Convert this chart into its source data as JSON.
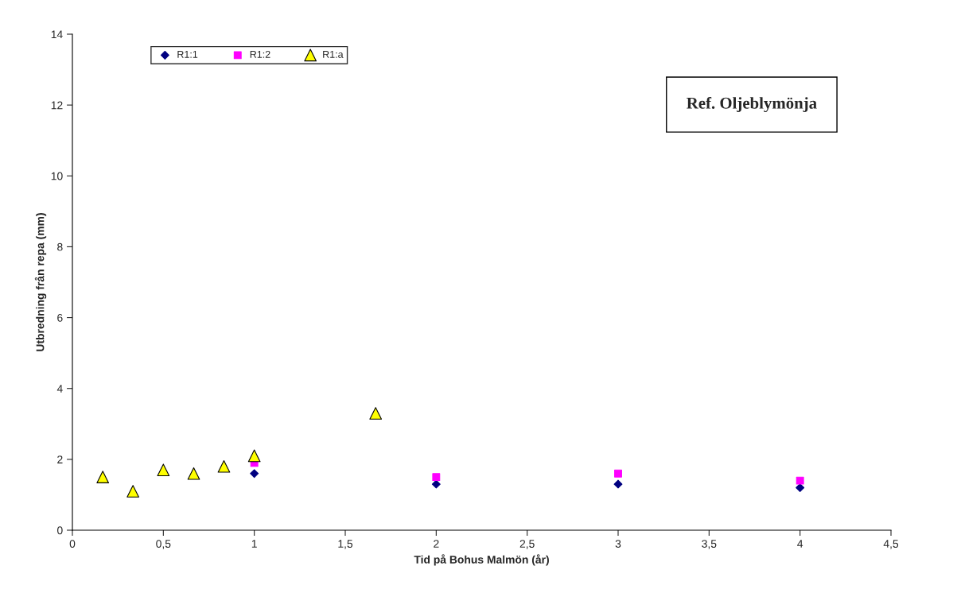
{
  "chart_data": {
    "type": "scatter",
    "xlabel": "Tid på Bohus Malmön (år)",
    "ylabel": "Utbredning från repa (mm)",
    "annotations": [
      "Ref. Oljeblymönja"
    ],
    "xlim": [
      0,
      4.5
    ],
    "xticks": [
      0,
      {
        "value": 0.5,
        "label": "0,5"
      },
      1,
      {
        "value": 1.5,
        "label": "1,5"
      },
      2,
      {
        "value": 2.5,
        "label": "2,5"
      },
      3,
      {
        "value": 3.5,
        "label": "3,5"
      },
      4,
      {
        "value": 4.5,
        "label": "4,5"
      }
    ],
    "ylim": [
      0,
      14
    ],
    "yticks": [
      0,
      2,
      4,
      6,
      8,
      10,
      12,
      14
    ],
    "grid": false,
    "legend": "top left",
    "series": [
      {
        "name": "R1:1",
        "color": "#000080",
        "marker": "diamond",
        "x": [
          1,
          2,
          3,
          4
        ],
        "values": [
          1.6,
          1.3,
          1.3,
          1.2
        ]
      },
      {
        "name": "R1:2",
        "color": "#ff00ff",
        "marker": "square",
        "x": [
          1,
          2,
          3,
          4
        ],
        "values": [
          1.9,
          1.5,
          1.6,
          1.4
        ]
      },
      {
        "name": "R1:a",
        "color": "#ffff00",
        "marker": "triangle",
        "x": [
          0.167,
          0.333,
          0.5,
          0.667,
          0.833,
          1,
          1.667
        ],
        "values": [
          1.5,
          1.1,
          1.7,
          1.6,
          1.8,
          2.1,
          3.3
        ]
      }
    ]
  }
}
